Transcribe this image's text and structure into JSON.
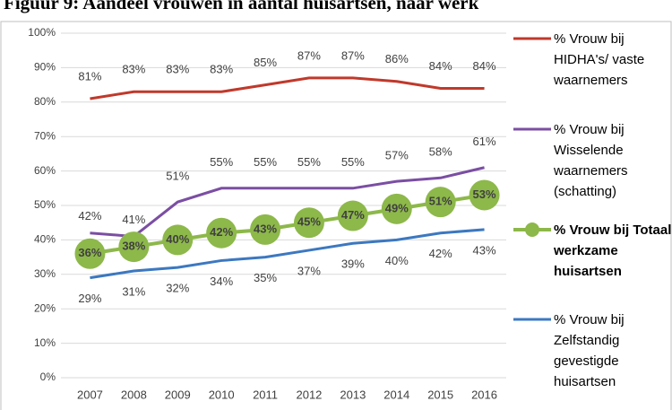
{
  "chart_data": {
    "type": "line",
    "title": "Figuur 9: Aandeel vrouwen in aantal huisartsen, naar werk",
    "categories": [
      "2007",
      "2008",
      "2009",
      "2010",
      "2011",
      "2012",
      "2013",
      "2014",
      "2015",
      "2016"
    ],
    "ylim": [
      0,
      100
    ],
    "yticks": [
      {
        "value": 0,
        "label": "0%"
      },
      {
        "value": 10,
        "label": "10%"
      },
      {
        "value": 20,
        "label": "20%"
      },
      {
        "value": 30,
        "label": "30%"
      },
      {
        "value": 40,
        "label": "40%"
      },
      {
        "value": 50,
        "label": "50%"
      },
      {
        "value": 60,
        "label": "60%"
      },
      {
        "value": 70,
        "label": "70%"
      },
      {
        "value": 80,
        "label": "80%"
      },
      {
        "value": 90,
        "label": "90%"
      },
      {
        "value": 100,
        "label": "100%"
      }
    ],
    "grid": true,
    "series": [
      {
        "name": "% Vrouw bij HIDHA's/ vaste waarnemers",
        "color": "#c0392b",
        "values": [
          81,
          83,
          83,
          83,
          85,
          87,
          87,
          86,
          84,
          84
        ],
        "value_labels": [
          "81%",
          "83%",
          "83%",
          "83%",
          "85%",
          "87%",
          "87%",
          "86%",
          "84%",
          "84%"
        ]
      },
      {
        "name": "% Vrouw bij Wisselende waarnemers (schatting)",
        "color": "#7b4ea3",
        "values": [
          42,
          41,
          51,
          55,
          55,
          55,
          55,
          57,
          58,
          61
        ],
        "value_labels": [
          "42%",
          "41%",
          "51%",
          "55%",
          "55%",
          "55%",
          "55%",
          "57%",
          "58%",
          "61%"
        ]
      },
      {
        "name": "% Vrouw bij Totaal werkzame huisartsen",
        "color": "#8db84a",
        "values": [
          36,
          38,
          40,
          42,
          43,
          45,
          47,
          49,
          51,
          53
        ],
        "value_labels": [
          "36%",
          "38%",
          "40%",
          "42%",
          "43%",
          "45%",
          "47%",
          "49%",
          "51%",
          "53%"
        ]
      },
      {
        "name": "% Vrouw bij Zelfstandig gevestigde huisartsen",
        "color": "#3c78c0",
        "values": [
          29,
          31,
          32,
          34,
          35,
          37,
          39,
          40,
          42,
          43
        ],
        "value_labels": [
          "29%",
          "31%",
          "32%",
          "34%",
          "35%",
          "37%",
          "39%",
          "40%",
          "42%",
          "43%"
        ]
      }
    ]
  }
}
